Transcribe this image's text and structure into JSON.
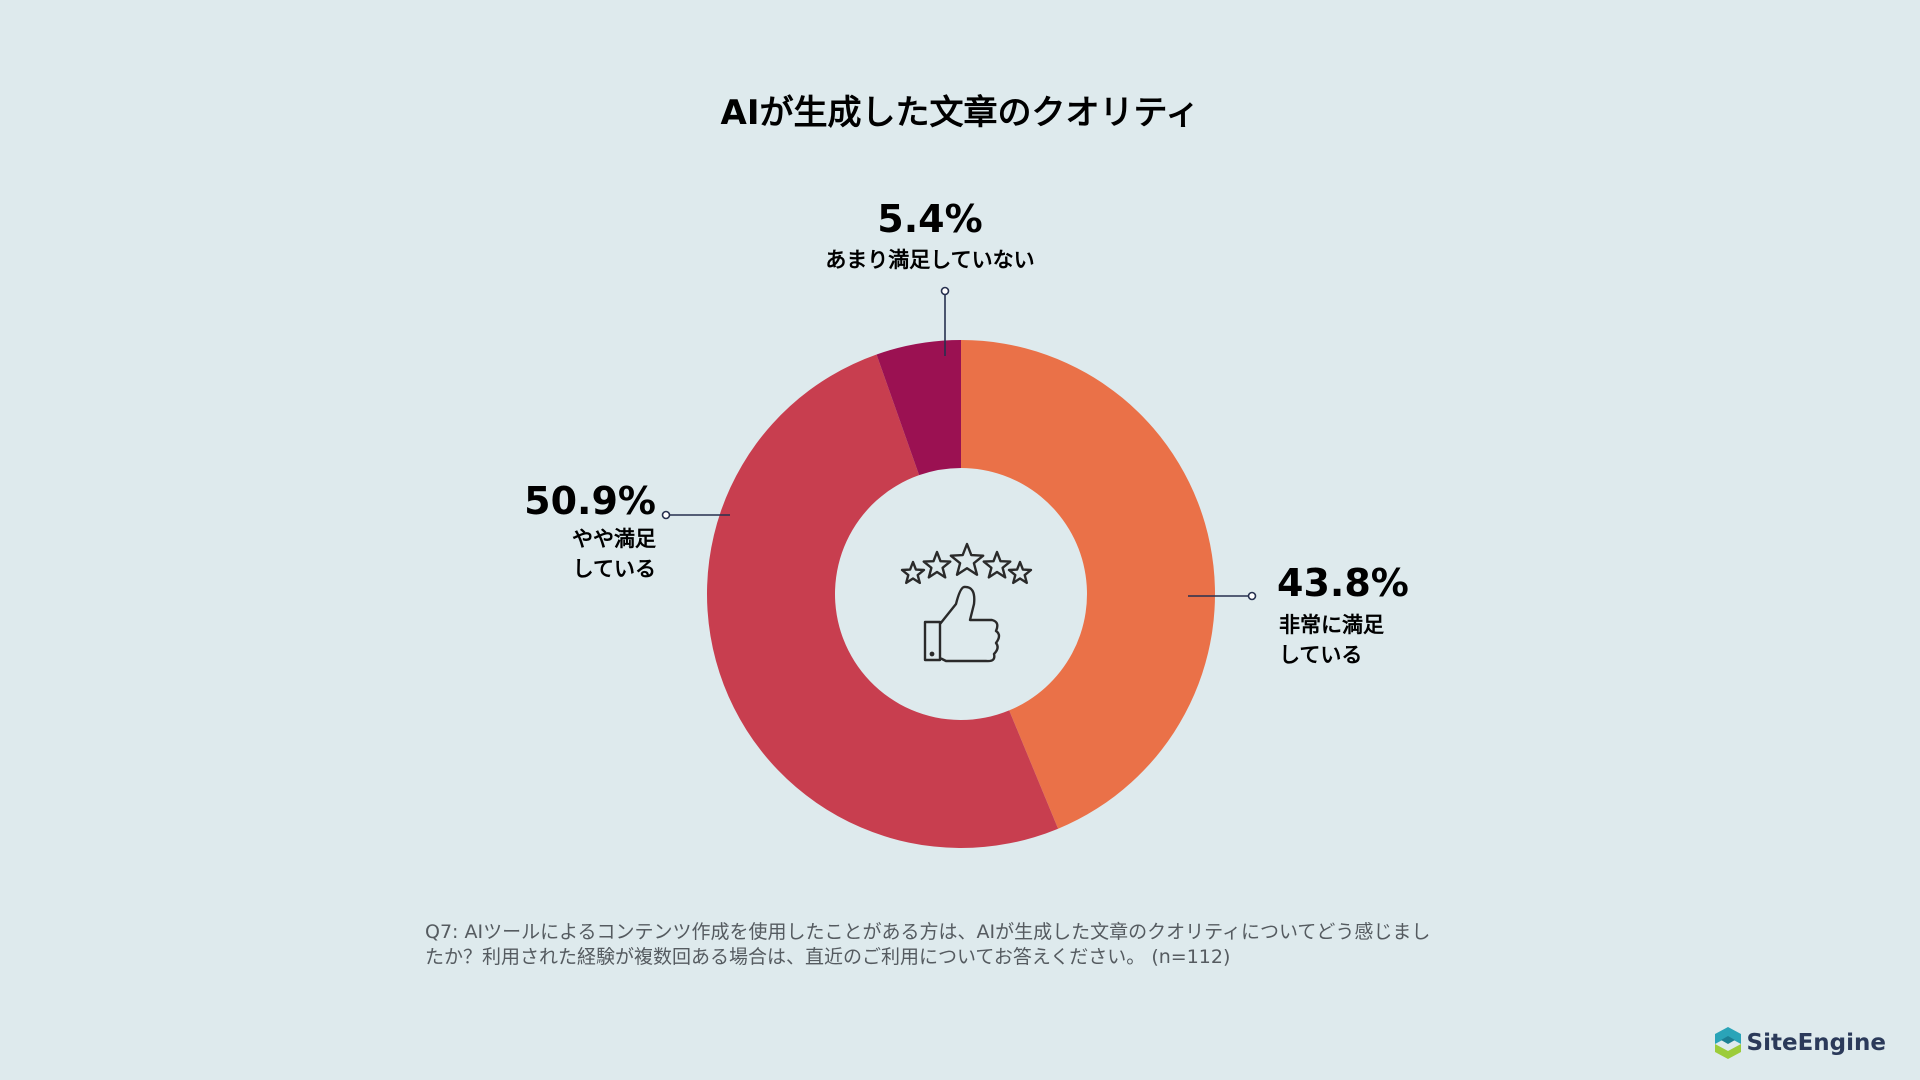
{
  "chart_data": {
    "type": "pie",
    "title": "AIが生成した文章のクオリティ",
    "donut": true,
    "slices": [
      {
        "percent_label": "43.8%",
        "value": 43.8,
        "label_lines": [
          "非常に満足",
          "している"
        ],
        "color": "#ea7148"
      },
      {
        "percent_label": "50.9%",
        "value": 50.9,
        "label_lines": [
          "やや満足",
          "している"
        ],
        "color": "#c83e4f"
      },
      {
        "percent_label": "5.4%",
        "value": 5.4,
        "label_lines": [
          "あまり満足していない"
        ],
        "color": "#9b1152"
      }
    ],
    "center_icon": "thumbs-up-stars-icon",
    "leader_color": "#26304f"
  },
  "footnote": {
    "line1": "Q7: AIツールによるコンテンツ作成を使用したことがある方は、AIが生成した文章のクオリティについてどう感じまし",
    "line2": "たか？利用された経験が複数回ある場合は、直近のご利用についてお答えください。 (n=112)"
  },
  "brand": {
    "name": "SiteEngine",
    "icon": "site-engine-logo-icon",
    "colors": [
      "#2aa4b8",
      "#9ccc3a"
    ]
  }
}
